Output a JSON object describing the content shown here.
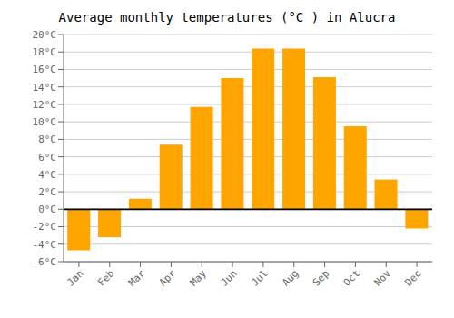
{
  "chart_data": {
    "type": "bar",
    "title": "Average monthly temperatures (°C ) in Alucra",
    "categories": [
      "Jan",
      "Feb",
      "Mar",
      "Apr",
      "May",
      "Jun",
      "Jul",
      "Aug",
      "Sep",
      "Oct",
      "Nov",
      "Dec"
    ],
    "values": [
      -4.7,
      -3.2,
      1.2,
      7.4,
      11.7,
      15.0,
      18.4,
      18.4,
      15.1,
      9.5,
      3.4,
      -2.2
    ],
    "color": "#FFA500",
    "ylim": [
      -6,
      20
    ],
    "yticks": [
      {
        "value": -6,
        "label": "-6°C"
      },
      {
        "value": -4,
        "label": "-4°C"
      },
      {
        "value": -2,
        "label": "-2°C"
      },
      {
        "value": 0,
        "label": "0°C"
      },
      {
        "value": 2,
        "label": "2°C"
      },
      {
        "value": 4,
        "label": "4°C"
      },
      {
        "value": 6,
        "label": "6°C"
      },
      {
        "value": 8,
        "label": "8°C"
      },
      {
        "value": 10,
        "label": "10°C"
      },
      {
        "value": 12,
        "label": "12°C"
      },
      {
        "value": 14,
        "label": "14°C"
      },
      {
        "value": 16,
        "label": "16°C"
      },
      {
        "value": 18,
        "label": "18°C"
      },
      {
        "value": 20,
        "label": "20°C"
      }
    ],
    "grid": true
  }
}
